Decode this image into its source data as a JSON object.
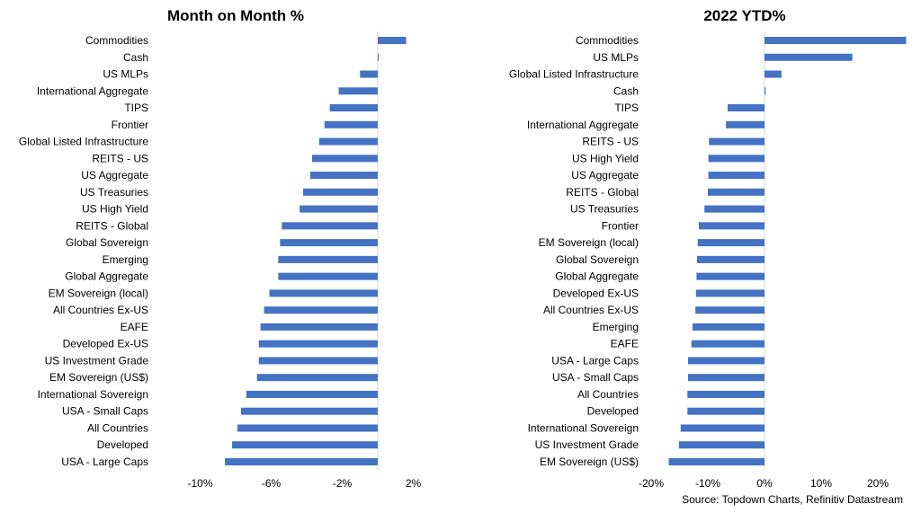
{
  "source": "Source: Topdown Charts, Refinitiv Datastream",
  "colors": {
    "bar": "#4472C4",
    "axis": "#D9D9D9",
    "text": "#000000"
  },
  "chart_data": [
    {
      "type": "bar",
      "orientation": "horizontal",
      "title": "Month on Month %",
      "xlim": [
        -10,
        2
      ],
      "xticks": [
        -10,
        -6,
        -2,
        2
      ],
      "xtick_labels": [
        "-10%",
        "-6%",
        "-2%",
        "2%"
      ],
      "grid": false,
      "categories": [
        "Commodities",
        "Cash",
        "US MLPs",
        "International Aggregate",
        "TIPS",
        "Frontier",
        "Global Listed Infrastructure",
        "REITS - US",
        "US Aggregate",
        "US Treasuries",
        "US High Yield",
        "REITS - Global",
        "Global Sovereign",
        "Emerging",
        "Global Aggregate",
        "EM Sovereign (local)",
        "All Countries Ex-US",
        "EAFE",
        "Developed Ex-US",
        "US Investment Grade",
        "EM Sovereign (US$)",
        "International Sovereign",
        "USA - Small Caps",
        "All Countries",
        "Developed",
        "USA - Large Caps"
      ],
      "values": [
        1.6,
        0.05,
        -1.0,
        -2.2,
        -2.7,
        -3.0,
        -3.3,
        -3.7,
        -3.8,
        -4.2,
        -4.4,
        -5.4,
        -5.5,
        -5.6,
        -5.6,
        -6.1,
        -6.4,
        -6.6,
        -6.7,
        -6.7,
        -6.8,
        -7.4,
        -7.7,
        -7.9,
        -8.2,
        -8.6
      ]
    },
    {
      "type": "bar",
      "orientation": "horizontal",
      "title": "2022 YTD%",
      "xlim": [
        -20,
        25
      ],
      "xticks": [
        -20,
        -10,
        0,
        10,
        20
      ],
      "xtick_labels": [
        "-20%",
        "-10%",
        "0%",
        "10%",
        "20%"
      ],
      "grid": false,
      "categories": [
        "Commodities",
        "US MLPs",
        "Global Listed Infrastructure",
        "Cash",
        "TIPS",
        "International Aggregate",
        "REITS - US",
        "US High Yield",
        "US Aggregate",
        "REITS - Global",
        "US Treasuries",
        "Frontier",
        "EM Sovereign (local)",
        "Global Sovereign",
        "Global Aggregate",
        "Developed Ex-US",
        "All Countries Ex-US",
        "Emerging",
        "EAFE",
        "USA - Large Caps",
        "USA - Small Caps",
        "All Countries",
        "Developed",
        "International Sovereign",
        "US Investment Grade",
        "EM Sovereign (US$)"
      ],
      "values": [
        25.0,
        15.5,
        3.0,
        0.2,
        -6.5,
        -6.8,
        -9.8,
        -9.9,
        -9.9,
        -10.0,
        -10.6,
        -11.6,
        -11.8,
        -11.9,
        -12.0,
        -12.1,
        -12.2,
        -12.7,
        -12.9,
        -13.5,
        -13.5,
        -13.6,
        -13.6,
        -14.8,
        -15.1,
        -16.9
      ]
    }
  ]
}
